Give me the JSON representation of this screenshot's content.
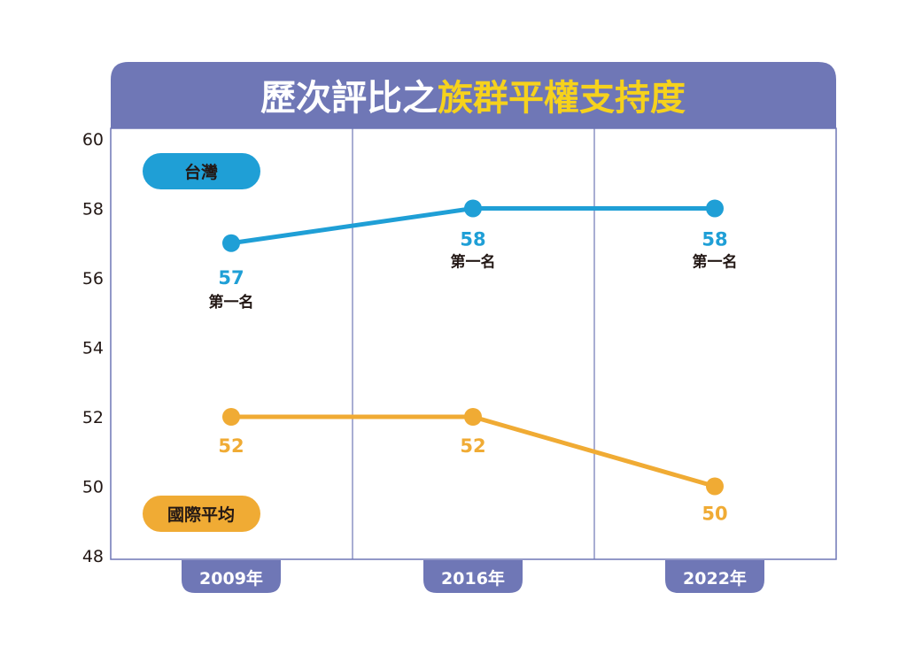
{
  "title": {
    "part1": "歷次評比之",
    "part2": "族群平權支持度"
  },
  "colors": {
    "frame": "#6f77b6",
    "taiwan": "#1f9fd6",
    "average": "#f0ab34",
    "title_highlight": "#f6d21c",
    "text": "#231815"
  },
  "chart_data": {
    "type": "line",
    "categories": [
      "2009年",
      "2016年",
      "2022年"
    ],
    "ylim": [
      48,
      60
    ],
    "yticks": [
      "48",
      "50",
      "52",
      "54",
      "56",
      "58",
      "60"
    ],
    "series": [
      {
        "name": "台灣",
        "values": [
          57,
          58,
          58
        ],
        "labels": [
          "57",
          "58",
          "58"
        ],
        "sublabels": [
          "第一名",
          "第一名",
          "第一名"
        ]
      },
      {
        "name": "國際平均",
        "values": [
          52,
          52,
          50
        ],
        "labels": [
          "52",
          "52",
          "50"
        ]
      }
    ]
  }
}
